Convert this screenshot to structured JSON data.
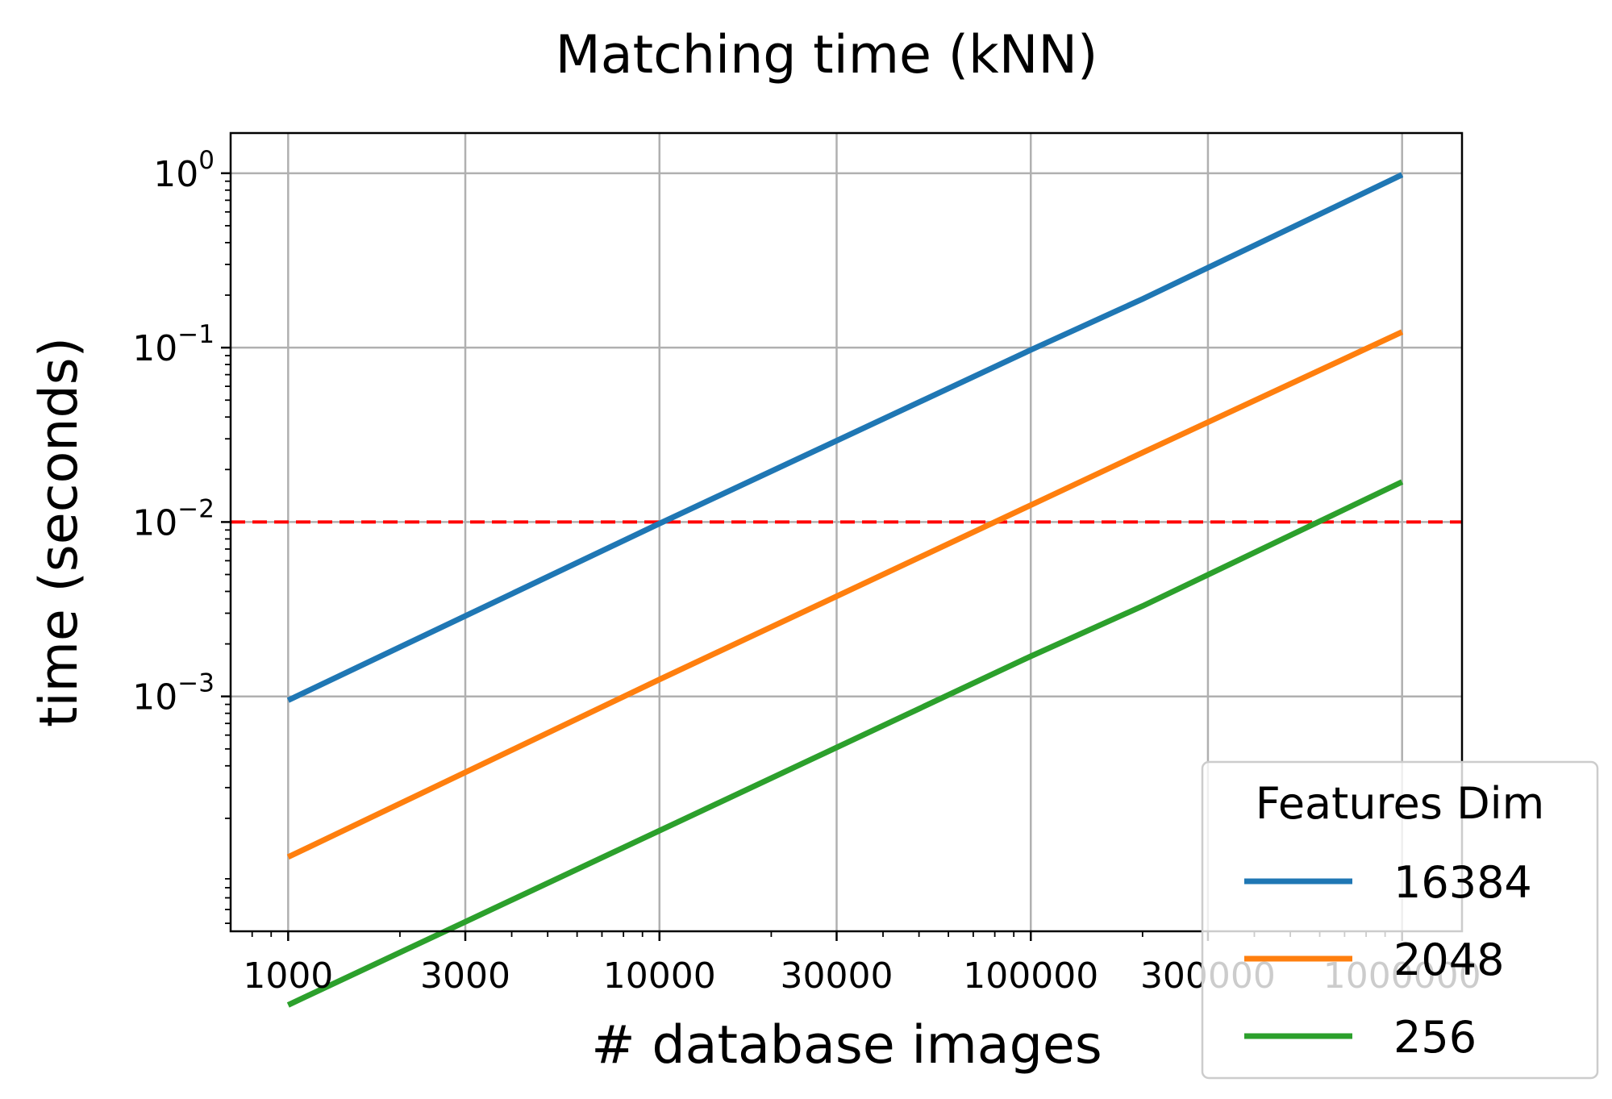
{
  "chart_data": {
    "type": "line",
    "title": "Matching time (kNN)",
    "xlabel": "# database images",
    "ylabel": "time (seconds)",
    "x_scale": "log",
    "y_scale": "log",
    "xlim": [
      700,
      1450000
    ],
    "ylim": [
      4.5e-05,
      1.7
    ],
    "grid": true,
    "x_ticks": [
      {
        "value": 1000,
        "label": "1000"
      },
      {
        "value": 3000,
        "label": "3000"
      },
      {
        "value": 10000,
        "label": "10000"
      },
      {
        "value": 30000,
        "label": "30000"
      },
      {
        "value": 100000,
        "label": "100000"
      },
      {
        "value": 300000,
        "label": "300000"
      },
      {
        "value": 1000000,
        "label": "1000000"
      }
    ],
    "y_ticks": [
      {
        "value": 1,
        "base": "10",
        "exp": "0"
      },
      {
        "value": 0.1,
        "base": "10",
        "exp": "−1"
      },
      {
        "value": 0.01,
        "base": "10",
        "exp": "−2"
      },
      {
        "value": 0.001,
        "base": "10",
        "exp": "−3"
      }
    ],
    "threshold": {
      "y": 0.01,
      "color": "#ff0000",
      "style": "dashed"
    },
    "legend": {
      "title": "Features Dim",
      "placement": "lower-right"
    },
    "x": [
      1000,
      10000,
      100000,
      200000,
      1000000
    ],
    "series": [
      {
        "name": "16384",
        "color": "#1f77b4",
        "values": [
          0.00095,
          0.0098,
          0.097,
          0.19,
          0.98
        ]
      },
      {
        "name": "2048",
        "color": "#ff7f0e",
        "values": [
          0.00012,
          0.00125,
          0.0125,
          0.025,
          0.123
        ]
      },
      {
        "name": "256",
        "color": "#2ca02c",
        "values": [
          1.7e-05,
          0.00017,
          0.0017,
          0.0033,
          0.017
        ]
      }
    ]
  }
}
